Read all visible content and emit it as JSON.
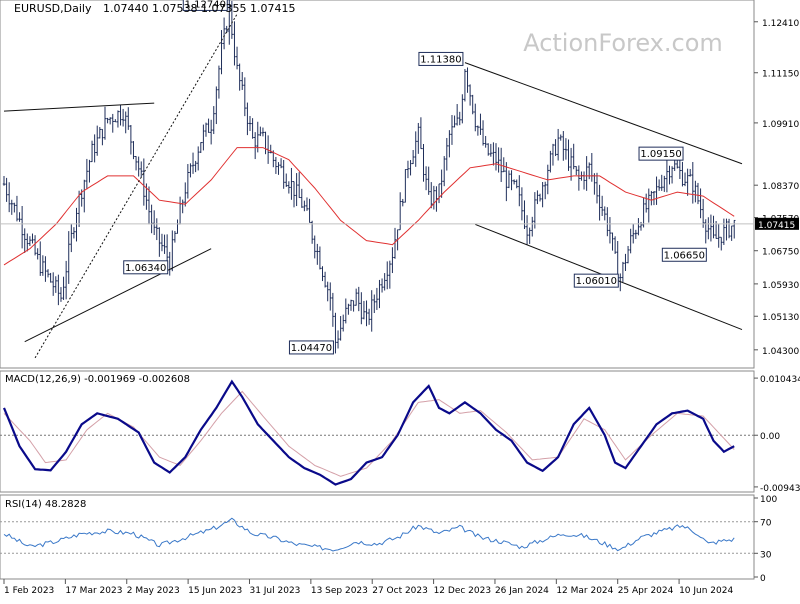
{
  "header": {
    "symbol_timeframe": "EURUSD,Daily",
    "ohlc": "1.07440 1.07538 1.07355 1.07415",
    "watermark": "ActionForex.com"
  },
  "chart_data": [
    {
      "panel": "price",
      "type": "bar",
      "title": "EURUSD,Daily",
      "ylim": [
        1.039,
        1.128
      ],
      "y_ticks": [
        "1.12410",
        "1.11150",
        "1.09910",
        "1.08370",
        "1.07570",
        "1.06750",
        "1.05930",
        "1.05130",
        "1.04300"
      ],
      "x_ticks": [
        "1 Feb 2023",
        "17 Mar 2023",
        "2 May 2023",
        "15 Jun 2023",
        "31 Jul 2023",
        "13 Sep 2023",
        "27 Oct 2023",
        "12 Dec 2023",
        "26 Jan 2024",
        "12 Mar 2024",
        "25 Apr 2024",
        "10 Jun 2024"
      ],
      "current_price": "1.07415",
      "series": [
        {
          "kind": "ohlc",
          "color": "#1f2e5a",
          "close_path": [
            [
              0,
              1.084
            ],
            [
              8,
              1.072
            ],
            [
              14,
              1.064
            ],
            [
              22,
              1.056
            ],
            [
              28,
              1.078
            ],
            [
              34,
              1.092
            ],
            [
              40,
              1.1
            ],
            [
              46,
              1.102
            ],
            [
              52,
              1.088
            ],
            [
              58,
              1.072
            ],
            [
              64,
              1.065
            ],
            [
              70,
              1.083
            ],
            [
              76,
              1.095
            ],
            [
              80,
              1.099
            ],
            [
              84,
              1.117
            ],
            [
              87,
              1.127
            ],
            [
              90,
              1.112
            ],
            [
              96,
              1.095
            ],
            [
              100,
              1.095
            ],
            [
              104,
              1.09
            ],
            [
              110,
              1.085
            ],
            [
              116,
              1.078
            ],
            [
              122,
              1.065
            ],
            [
              126,
              1.056
            ],
            [
              128,
              1.045
            ],
            [
              132,
              1.052
            ],
            [
              136,
              1.056
            ],
            [
              140,
              1.05
            ],
            [
              144,
              1.057
            ],
            [
              150,
              1.067
            ],
            [
              156,
              1.089
            ],
            [
              160,
              1.096
            ],
            [
              164,
              1.08
            ],
            [
              168,
              1.082
            ],
            [
              172,
              1.096
            ],
            [
              176,
              1.1
            ],
            [
              178,
              1.113
            ],
            [
              182,
              1.1
            ],
            [
              186,
              1.092
            ],
            [
              190,
              1.09
            ],
            [
              194,
              1.085
            ],
            [
              198,
              1.082
            ],
            [
              202,
              1.073
            ],
            [
              206,
              1.08
            ],
            [
              210,
              1.088
            ],
            [
              214,
              1.095
            ],
            [
              218,
              1.09
            ],
            [
              222,
              1.085
            ],
            [
              226,
              1.088
            ],
            [
              230,
              1.08
            ],
            [
              234,
              1.072
            ],
            [
              236,
              1.065
            ],
            [
              238,
              1.061
            ],
            [
              242,
              1.07
            ],
            [
              246,
              1.076
            ],
            [
              250,
              1.08
            ],
            [
              254,
              1.085
            ],
            [
              258,
              1.089
            ],
            [
              262,
              1.086
            ],
            [
              266,
              1.084
            ],
            [
              270,
              1.076
            ],
            [
              274,
              1.07
            ],
            [
              278,
              1.072
            ],
            [
              282,
              1.0741
            ]
          ]
        },
        {
          "kind": "line",
          "color": "#e03030",
          "values": [
            [
              0,
              1.064
            ],
            [
              10,
              1.068
            ],
            [
              20,
              1.074
            ],
            [
              30,
              1.082
            ],
            [
              40,
              1.086
            ],
            [
              50,
              1.086
            ],
            [
              60,
              1.08
            ],
            [
              70,
              1.079
            ],
            [
              80,
              1.085
            ],
            [
              90,
              1.093
            ],
            [
              100,
              1.093
            ],
            [
              110,
              1.09
            ],
            [
              120,
              1.083
            ],
            [
              130,
              1.075
            ],
            [
              140,
              1.07
            ],
            [
              150,
              1.069
            ],
            [
              160,
              1.075
            ],
            [
              170,
              1.082
            ],
            [
              180,
              1.088
            ],
            [
              190,
              1.089
            ],
            [
              200,
              1.087
            ],
            [
              210,
              1.085
            ],
            [
              220,
              1.086
            ],
            [
              230,
              1.086
            ],
            [
              240,
              1.082
            ],
            [
              250,
              1.08
            ],
            [
              260,
              1.082
            ],
            [
              270,
              1.081
            ],
            [
              282,
              1.076
            ]
          ]
        }
      ],
      "annotations": [
        {
          "label": "1.12740",
          "i": 87,
          "price": 1.1274,
          "side": "left-top"
        },
        {
          "label": "1.11380",
          "i": 178,
          "price": 1.1138,
          "side": "left-top"
        },
        {
          "label": "1.09150",
          "i": 263,
          "price": 1.0915,
          "side": "left"
        },
        {
          "label": "1.06340",
          "i": 64,
          "price": 1.0634,
          "side": "left"
        },
        {
          "label": "1.04470",
          "i": 128,
          "price": 1.0447,
          "side": "left-bottom"
        },
        {
          "label": "1.06010",
          "i": 238,
          "price": 1.0601,
          "side": "left"
        },
        {
          "label": "1.06650",
          "i": 272,
          "price": 1.0665,
          "side": "left"
        }
      ],
      "trendlines": [
        {
          "style": "solid",
          "from": [
            0,
            1.102
          ],
          "to": [
            58,
            1.104
          ]
        },
        {
          "style": "solid",
          "from": [
            8,
            1.045
          ],
          "to": [
            80,
            1.068
          ]
        },
        {
          "style": "dotted",
          "from": [
            12,
            1.041
          ],
          "to": [
            90,
            1.126
          ]
        },
        {
          "style": "solid",
          "from": [
            178,
            1.114
          ],
          "to": [
            285,
            1.089
          ]
        },
        {
          "style": "solid",
          "from": [
            182,
            1.074
          ],
          "to": [
            285,
            1.048
          ]
        }
      ]
    },
    {
      "panel": "macd",
      "type": "line",
      "title": "MACD(12,26,9) -0.001969 -0.002608",
      "ylim": [
        -0.01,
        0.011
      ],
      "y_ticks": [
        "0.010434",
        "0.00",
        "-0.009436"
      ],
      "series": [
        {
          "name": "MACD",
          "color": "#0a0a8a",
          "values": [
            [
              0,
              0.005
            ],
            [
              6,
              -0.002
            ],
            [
              12,
              -0.0062
            ],
            [
              18,
              -0.0064
            ],
            [
              24,
              -0.003
            ],
            [
              30,
              0.002
            ],
            [
              36,
              0.004
            ],
            [
              44,
              0.003
            ],
            [
              52,
              0.0005
            ],
            [
              58,
              -0.005
            ],
            [
              64,
              -0.0068
            ],
            [
              70,
              -0.004
            ],
            [
              76,
              0.001
            ],
            [
              82,
              0.005
            ],
            [
              88,
              0.0098
            ],
            [
              92,
              0.007
            ],
            [
              98,
              0.002
            ],
            [
              104,
              -0.001
            ],
            [
              110,
              -0.004
            ],
            [
              116,
              -0.006
            ],
            [
              122,
              -0.0072
            ],
            [
              128,
              -0.009
            ],
            [
              134,
              -0.008
            ],
            [
              140,
              -0.005
            ],
            [
              146,
              -0.004
            ],
            [
              152,
              0.0
            ],
            [
              158,
              0.006
            ],
            [
              164,
              0.009
            ],
            [
              168,
              0.005
            ],
            [
              172,
              0.004
            ],
            [
              178,
              0.006
            ],
            [
              184,
              0.004
            ],
            [
              190,
              0.001
            ],
            [
              196,
              -0.001
            ],
            [
              202,
              -0.005
            ],
            [
              208,
              -0.0065
            ],
            [
              214,
              -0.004
            ],
            [
              220,
              0.002
            ],
            [
              226,
              0.005
            ],
            [
              232,
              0.0
            ],
            [
              236,
              -0.005
            ],
            [
              240,
              -0.006
            ],
            [
              246,
              -0.002
            ],
            [
              252,
              0.002
            ],
            [
              258,
              0.004
            ],
            [
              264,
              0.0045
            ],
            [
              270,
              0.003
            ],
            [
              274,
              -0.001
            ],
            [
              278,
              -0.003
            ],
            [
              282,
              -0.002
            ]
          ]
        },
        {
          "name": "Signal",
          "color": "#d4a0a8",
          "values": [
            [
              0,
              0.004
            ],
            [
              10,
              -0.001
            ],
            [
              16,
              -0.005
            ],
            [
              24,
              -0.0045
            ],
            [
              32,
              0.001
            ],
            [
              40,
              0.004
            ],
            [
              50,
              0.0015
            ],
            [
              60,
              -0.004
            ],
            [
              68,
              -0.0055
            ],
            [
              76,
              -0.001
            ],
            [
              84,
              0.004
            ],
            [
              92,
              0.008
            ],
            [
              100,
              0.0035
            ],
            [
              110,
              -0.002
            ],
            [
              120,
              -0.0055
            ],
            [
              130,
              -0.0075
            ],
            [
              140,
              -0.006
            ],
            [
              150,
              -0.001
            ],
            [
              160,
              0.006
            ],
            [
              168,
              0.0065
            ],
            [
              176,
              0.004
            ],
            [
              184,
              0.0045
            ],
            [
              194,
              0.0005
            ],
            [
              204,
              -0.0045
            ],
            [
              214,
              -0.004
            ],
            [
              224,
              0.003
            ],
            [
              232,
              0.001
            ],
            [
              240,
              -0.0045
            ],
            [
              250,
              0.0
            ],
            [
              260,
              0.004
            ],
            [
              270,
              0.0035
            ],
            [
              282,
              -0.0026
            ]
          ]
        }
      ]
    },
    {
      "panel": "rsi",
      "type": "line",
      "title": "RSI(14) 48.2828",
      "ylim": [
        0,
        100
      ],
      "y_ticks": [
        "100",
        "70",
        "30",
        "0"
      ],
      "series": [
        {
          "name": "RSI",
          "color": "#3a78c8",
          "values": [
            [
              0,
              55
            ],
            [
              10,
              38
            ],
            [
              20,
              45
            ],
            [
              30,
              55
            ],
            [
              40,
              58
            ],
            [
              50,
              55
            ],
            [
              60,
              40
            ],
            [
              70,
              50
            ],
            [
              80,
              60
            ],
            [
              88,
              72
            ],
            [
              96,
              55
            ],
            [
              104,
              50
            ],
            [
              112,
              42
            ],
            [
              120,
              38
            ],
            [
              128,
              35
            ],
            [
              136,
              45
            ],
            [
              144,
              42
            ],
            [
              152,
              50
            ],
            [
              160,
              65
            ],
            [
              168,
              55
            ],
            [
              176,
              63
            ],
            [
              184,
              50
            ],
            [
              192,
              45
            ],
            [
              200,
              38
            ],
            [
              208,
              47
            ],
            [
              216,
              55
            ],
            [
              224,
              52
            ],
            [
              232,
              42
            ],
            [
              238,
              35
            ],
            [
              246,
              50
            ],
            [
              254,
              58
            ],
            [
              262,
              65
            ],
            [
              268,
              55
            ],
            [
              272,
              42
            ],
            [
              276,
              45
            ],
            [
              282,
              48
            ]
          ]
        }
      ]
    }
  ]
}
